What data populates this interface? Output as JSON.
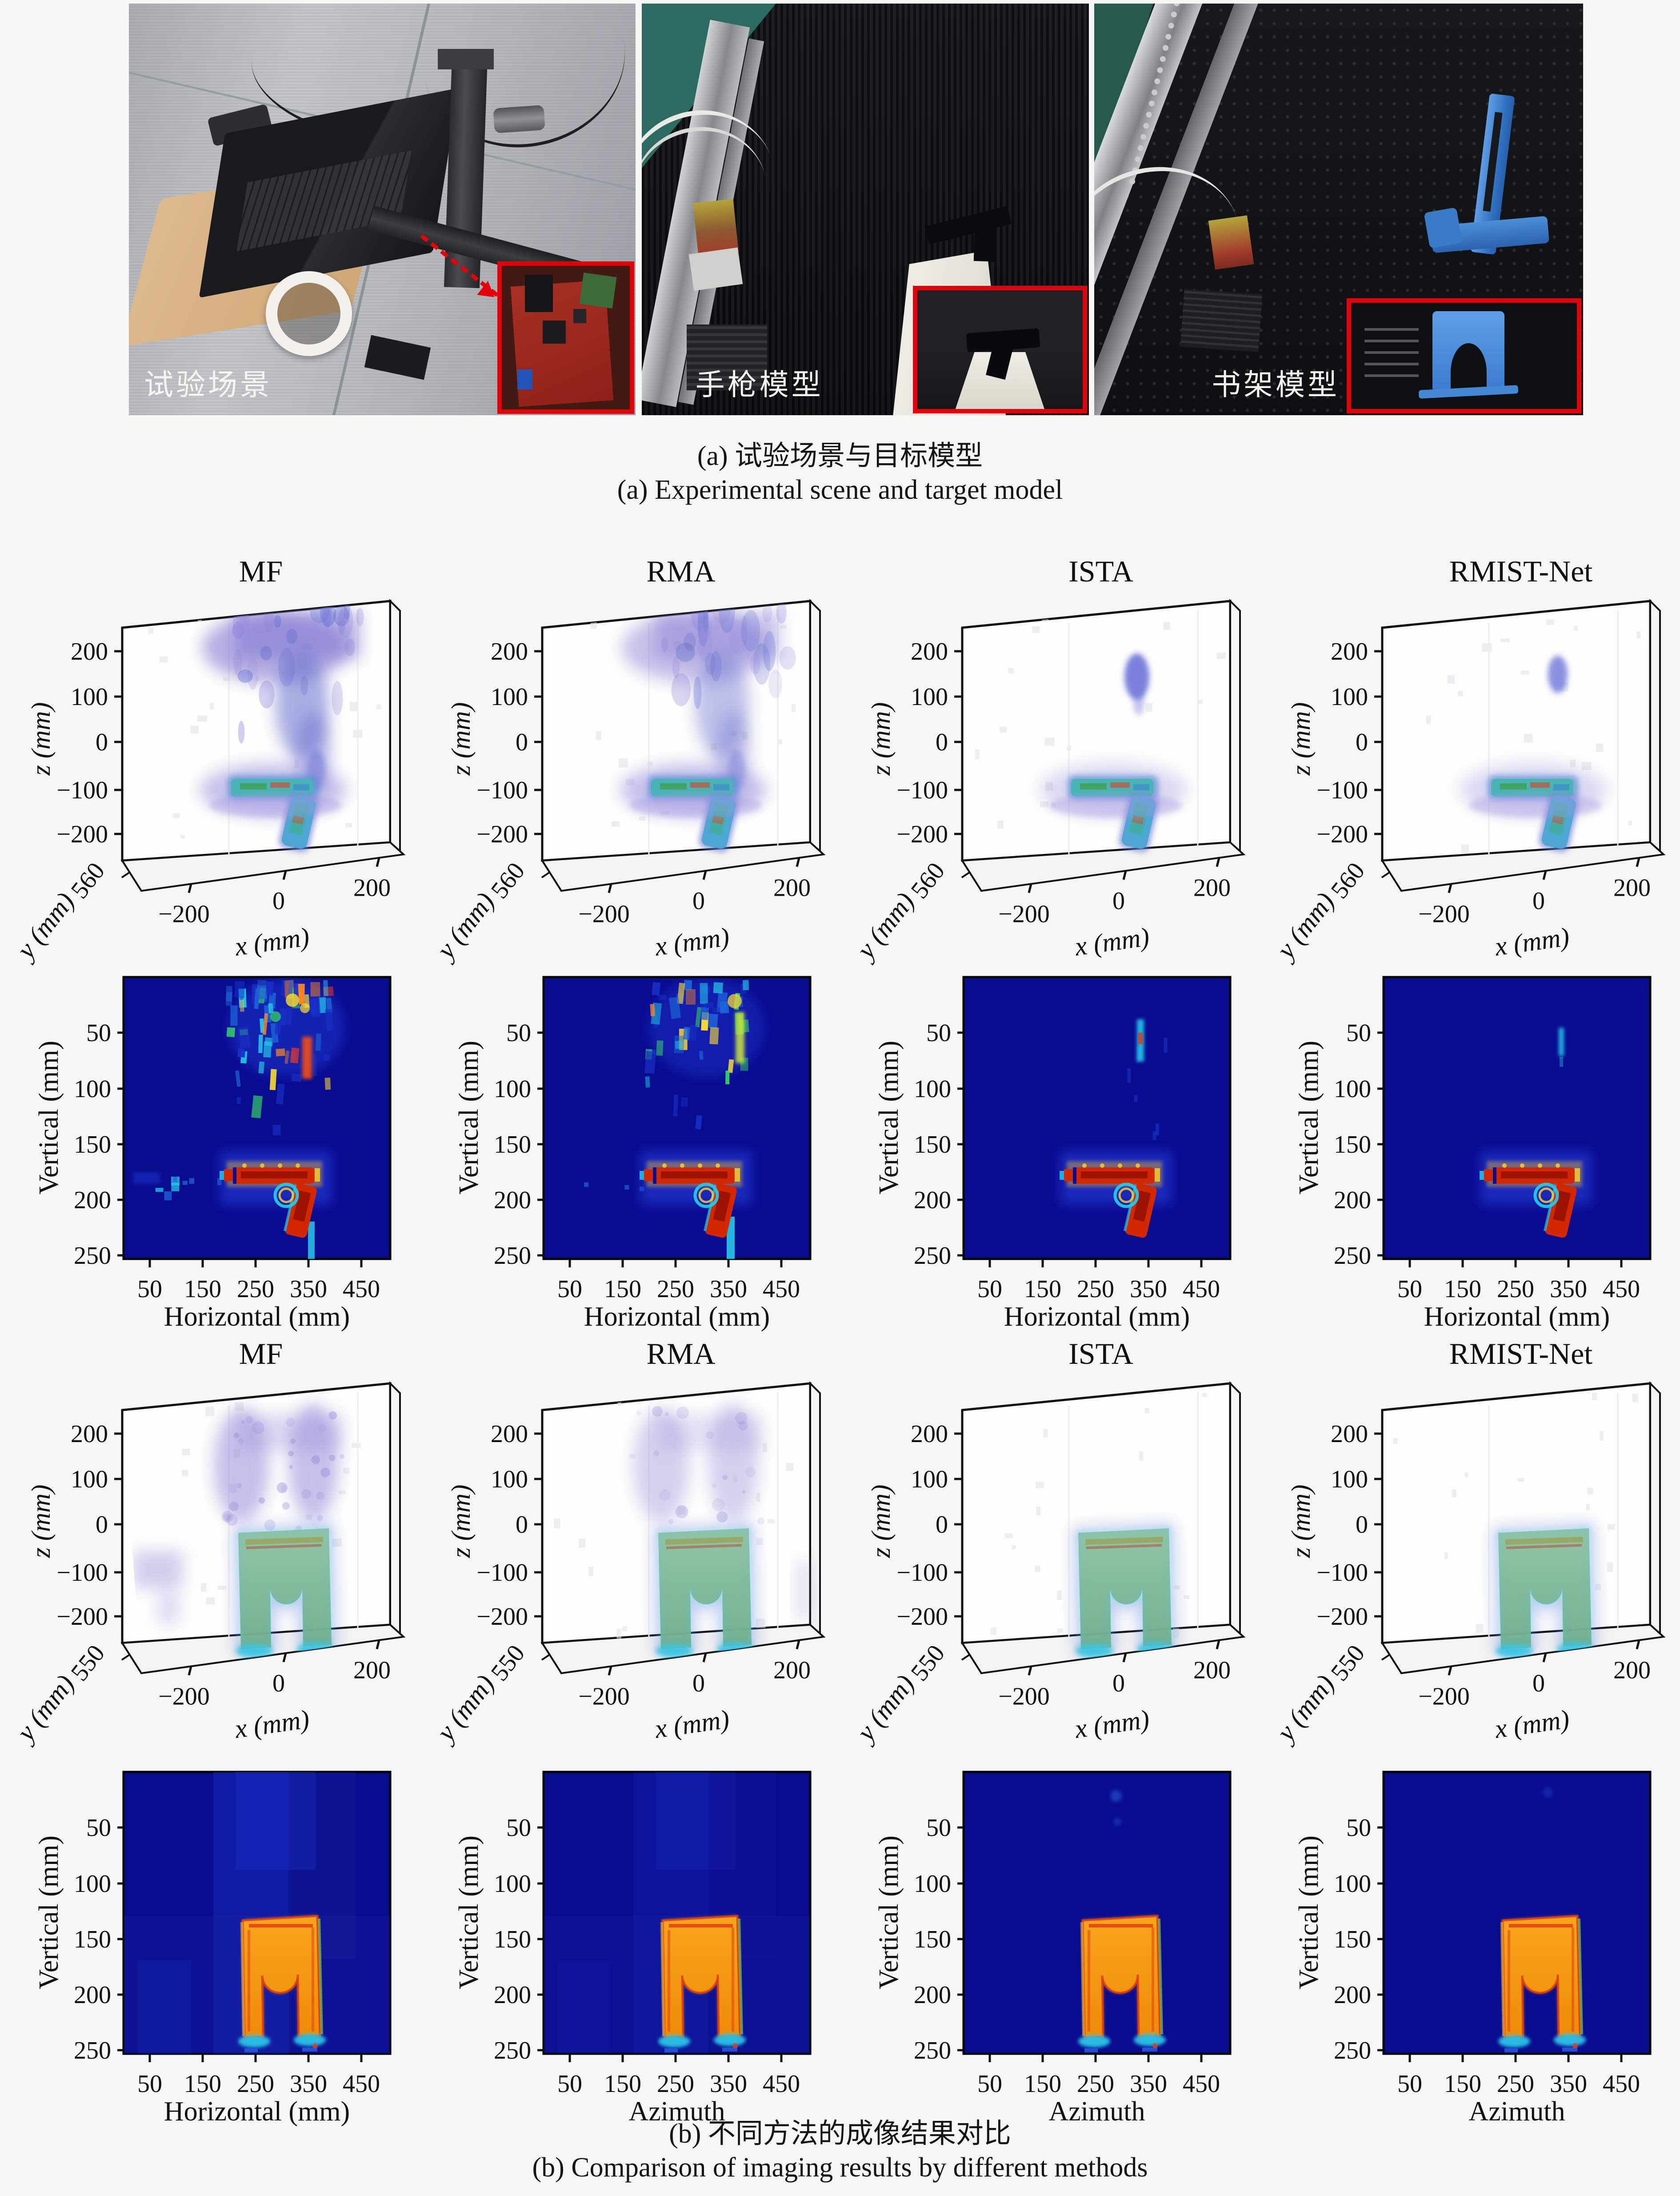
{
  "page": {
    "background": "#f6f6f4",
    "accent_red": "#e2000a"
  },
  "figure_a": {
    "caption_zh": "(a) 试验场景与目标模型",
    "caption_en": "(a) Experimental scene and target model",
    "photos": [
      {
        "label": "试验场景",
        "content": "experimental scene: laptop, wooden board, tape ring, vertical scanner rail on grey floor, red inset of radar PCB"
      },
      {
        "label": "手枪模型",
        "content": "anechoic chamber, pistol model on white foam pillar, red inset close-up of pistol"
      },
      {
        "label": "书架模型",
        "content": "anechoic chamber, blue bookend model, red inset close-up of bookend"
      }
    ]
  },
  "figure_b": {
    "caption_zh": "(b) 不同方法的成像结果对比",
    "caption_en": "(b) Comparison of imaging results by different methods",
    "groups": [
      {
        "target": "pistol",
        "axes3d": {
          "xlabel": "x (mm)",
          "ylabel": "y (mm)",
          "zlabel": "z (mm)",
          "x_ticks": [
            "−200",
            "0",
            "200"
          ],
          "z_ticks": [
            "200",
            "100",
            "0",
            "−100",
            "−200"
          ],
          "y_tick": "560"
        },
        "axes2d": {
          "ylabel": "Vertical (mm)",
          "y_ticks": [
            "50",
            "100",
            "150",
            "200",
            "250"
          ],
          "x_ticks": [
            "50",
            "150",
            "250",
            "350",
            "450"
          ]
        },
        "panels": [
          {
            "method": "MF",
            "artifact_level": "high",
            "hm_xlabel": "Horizontal (mm)"
          },
          {
            "method": "RMA",
            "artifact_level": "medium",
            "hm_xlabel": "Horizontal (mm)"
          },
          {
            "method": "ISTA",
            "artifact_level": "low",
            "hm_xlabel": "Horizontal (mm)"
          },
          {
            "method": "RMIST-Net",
            "artifact_level": "minimal",
            "hm_xlabel": "Horizontal (mm)"
          }
        ]
      },
      {
        "target": "bookend",
        "axes3d": {
          "xlabel": "x (mm)",
          "ylabel": "y (mm)",
          "zlabel": "z (mm)",
          "x_ticks": [
            "−200",
            "0",
            "200"
          ],
          "z_ticks": [
            "200",
            "100",
            "0",
            "−100",
            "−200"
          ],
          "y_tick": "550"
        },
        "axes2d": {
          "ylabel": "Vertical (mm)",
          "y_ticks": [
            "50",
            "100",
            "150",
            "200",
            "250"
          ],
          "x_ticks": [
            "50",
            "150",
            "250",
            "350",
            "450"
          ]
        },
        "panels": [
          {
            "method": "MF",
            "artifact_level": "high",
            "hm_xlabel": "Horizontal (mm)"
          },
          {
            "method": "RMA",
            "artifact_level": "medium",
            "hm_xlabel": "Azimuth"
          },
          {
            "method": "ISTA",
            "artifact_level": "low",
            "hm_xlabel": "Azimuth"
          },
          {
            "method": "RMIST-Net",
            "artifact_level": "minimal",
            "hm_xlabel": "Azimuth"
          }
        ]
      }
    ]
  },
  "chart_data": [
    {
      "id": "row1-3d-pistol",
      "type": "scatter",
      "render": "3d-voxel-cloud",
      "target": "pistol",
      "methods": [
        "MF",
        "RMA",
        "ISTA",
        "RMIST-Net"
      ],
      "xlabel": "x (mm)",
      "ylabel": "y (mm)",
      "zlabel": "z (mm)",
      "x_ticks": [
        -200,
        0,
        200
      ],
      "z_ticks": [
        200,
        100,
        0,
        -100,
        -200
      ],
      "y_ticks": [
        560
      ],
      "xlim": [
        -300,
        300
      ],
      "zlim": [
        -270,
        270
      ],
      "grid": false,
      "legend": "none",
      "target_extent": {
        "x_mm": [
          -120,
          110
        ],
        "z_mm": [
          -200,
          -50
        ]
      },
      "artifacts_by_method": {
        "MF": "dense purple-blue vertical smear above pistol, x 0..120 mm, z -40..270 mm, plus grey speckle",
        "RMA": "similar vertical smear, slightly weaker",
        "ISTA": "clean pistol, small residual blob near x 60 mm, z 120..210 mm",
        "RMIST-Net": "cleanest pistol, tiny residual blob near x 60 mm, z 140..200 mm"
      }
    },
    {
      "id": "row2-heatmap-pistol",
      "type": "heatmap",
      "colormap": "jet",
      "target": "pistol front projection",
      "methods": [
        "MF",
        "RMA",
        "ISTA",
        "RMIST-Net"
      ],
      "xlabel_by_method": [
        "Horizontal (mm)",
        "Horizontal (mm)",
        "Horizontal (mm)",
        "Horizontal (mm)"
      ],
      "ylabel": "Vertical (mm)",
      "x_ticks": [
        50,
        150,
        250,
        350,
        450
      ],
      "y_ticks": [
        50,
        100,
        150,
        200,
        250
      ],
      "xlim": [
        0,
        505
      ],
      "ylim_top_to_bottom": [
        0,
        253
      ],
      "background_level": "minimum (dark navy blue)",
      "target_extent": {
        "horizontal_mm": [
          225,
          370
        ],
        "vertical_mm": [
          165,
          220
        ]
      },
      "artifacts_by_method": {
        "MF": "heavy cyan/yellow/red noise streaks at horizontal 220..370, vertical 0..150; cyan tail below grip to bottom edge; speckles left of pistol",
        "RMA": "moderate noise streaks with yellow-green vertical streak near horizontal 350, vertical 30..90",
        "ISTA": "small cyan/red vertical dash near horizontal 340, vertical 38..75",
        "RMIST-Net": "single small cyan dash near horizontal 340, vertical 45..70"
      }
    },
    {
      "id": "row3-3d-bookend",
      "type": "scatter",
      "render": "3d-voxel-cloud",
      "target": "bookend (bookshelf model)",
      "methods": [
        "MF",
        "RMA",
        "ISTA",
        "RMIST-Net"
      ],
      "xlabel": "x (mm)",
      "ylabel": "y (mm)",
      "zlabel": "z (mm)",
      "x_ticks": [
        -200,
        0,
        200
      ],
      "z_ticks": [
        200,
        100,
        0,
        -100,
        -200
      ],
      "y_ticks": [
        550
      ],
      "xlim": [
        -300,
        300
      ],
      "zlim": [
        -270,
        270
      ],
      "grid": false,
      "legend": "none",
      "target_extent": {
        "x_mm": [
          -90,
          110
        ],
        "z_mm": [
          -210,
          40
        ]
      },
      "artifacts_by_method": {
        "MF": "two purple vertical plumes above arch (z 40..260) plus purple patch at x -220..-150, z -30..-110",
        "RMA": "two fainter purple plumes above arch and faint right-edge streak",
        "ISTA": "essentially clean arch",
        "RMIST-Net": "essentially clean arch"
      }
    },
    {
      "id": "row4-heatmap-bookend",
      "type": "heatmap",
      "colormap": "jet",
      "target": "bookend front projection",
      "methods": [
        "MF",
        "RMA",
        "ISTA",
        "RMIST-Net"
      ],
      "xlabel_by_method": [
        "Horizontal (mm)",
        "Azimuth",
        "Azimuth",
        "Azimuth"
      ],
      "ylabel": "Vertical (mm)",
      "x_ticks": [
        50,
        150,
        250,
        350,
        450
      ],
      "y_ticks": [
        50,
        100,
        150,
        200,
        250
      ],
      "xlim": [
        0,
        505
      ],
      "ylim_top_to_bottom": [
        0,
        253
      ],
      "background_level": "minimum (dark navy blue) with lighter blue blocks for MF/RMA",
      "target_extent": {
        "horizontal_mm": [
          235,
          370
        ],
        "vertical_mm": [
          120,
          245
        ]
      },
      "artifacts_by_method": {
        "MF": "broad lighter-blue background blocks around arch",
        "RMA": "faint lighter-blue background blocks",
        "ISTA": "two tiny blue specks above arch",
        "RMIST-Net": "one tiny blue speck above arch"
      }
    }
  ],
  "colors": {
    "page_bg": "#f6f6f4",
    "heatmap_bg": "#0a0c90",
    "jet_red": "#d22800",
    "jet_orange": "#f8a51b",
    "jet_cyan": "#24c8e8",
    "arch_green": "#7fbd9c",
    "artifact_purple": "#8d84d8",
    "inset_border_red": "#e2000a"
  }
}
